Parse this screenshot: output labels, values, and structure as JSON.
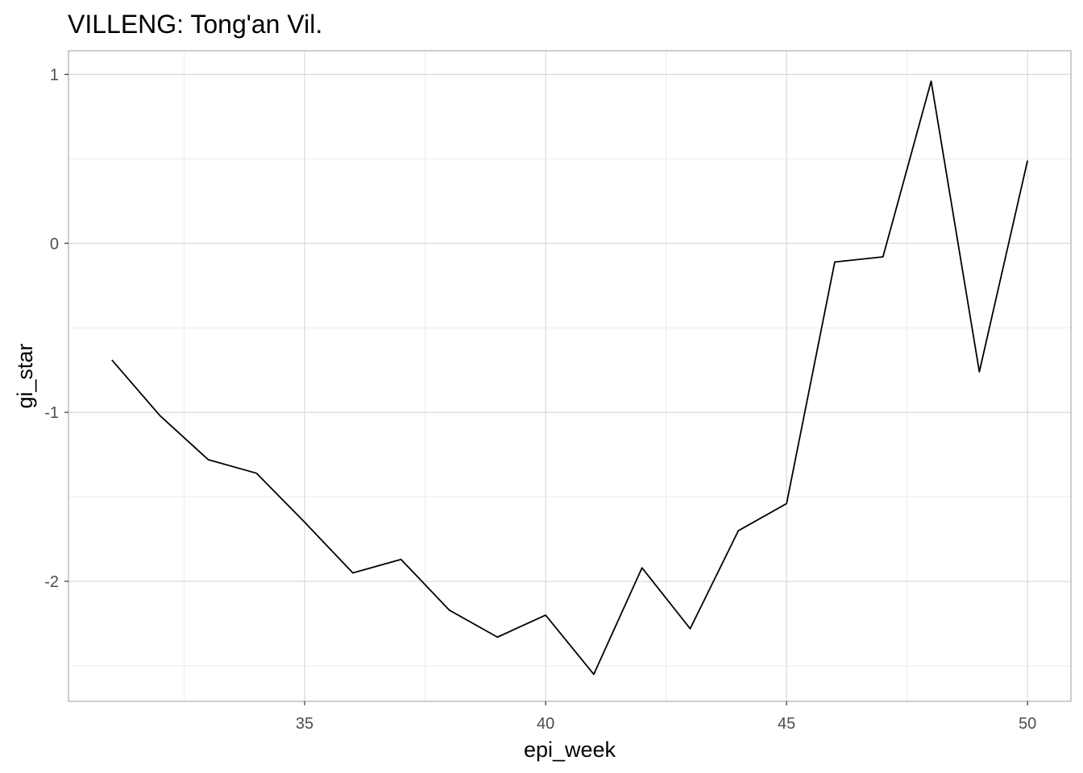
{
  "chart_data": {
    "type": "line",
    "title": "VILLENG: Tong'an Vil.",
    "xlabel": "epi_week",
    "ylabel": "gi_star",
    "x": [
      31,
      32,
      33,
      34,
      35,
      36,
      37,
      38,
      39,
      40,
      41,
      42,
      43,
      44,
      45,
      46,
      47,
      48,
      49,
      50
    ],
    "series": [
      {
        "values": [
          -0.69,
          -1.02,
          -1.28,
          -1.36,
          -1.65,
          -1.95,
          -1.87,
          -2.17,
          -2.33,
          -2.2,
          -2.55,
          -1.92,
          -2.28,
          -1.7,
          -1.54,
          -0.11,
          -0.08,
          0.96,
          -0.76,
          0.49
        ],
        "color": "#000000"
      }
    ],
    "xlim": [
      30.1,
      50.9
    ],
    "ylim": [
      -2.71,
      1.14
    ],
    "xticks": [
      35,
      40,
      45,
      50
    ],
    "xtick_labels": [
      "35",
      "40",
      "45",
      "50"
    ],
    "yticks": [
      1,
      0,
      -1,
      -2
    ],
    "ytick_labels": [
      "1",
      "0",
      "-1",
      "-2"
    ],
    "grid": true,
    "legend": "none",
    "colors": {
      "grid_major": "#d9d9d9",
      "grid_minor": "#ebebeb",
      "panel_border": "#b3b3b3",
      "line": "#000000"
    }
  }
}
